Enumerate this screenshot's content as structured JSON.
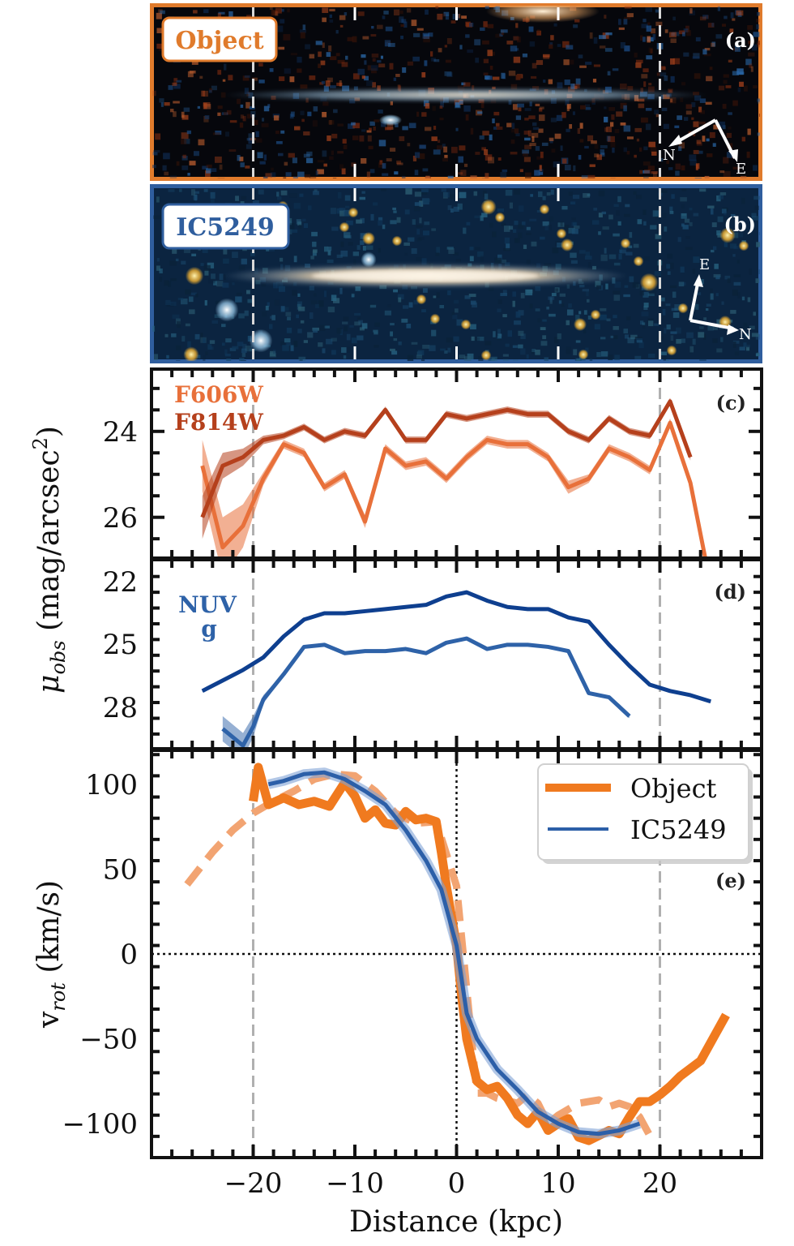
{
  "chart_data": [
    {
      "panel": "a",
      "type": "image",
      "label": "Object",
      "tag": "(a)",
      "frame_color": "#e07b2c",
      "compass": {
        "N": "N",
        "E": "E",
        "orientation": "N points lower-left, E points lower-right"
      },
      "vertical_markers_kpc": [
        -20,
        20
      ]
    },
    {
      "panel": "b",
      "type": "image",
      "label": "IC5249",
      "tag": "(b)",
      "frame_color": "#2f5e9e",
      "compass": {
        "N": "N",
        "E": "E",
        "orientation": "E points up, N points right"
      },
      "vertical_markers_kpc": [
        -20,
        20
      ]
    },
    {
      "panel": "c",
      "type": "line",
      "tag": "(c)",
      "xlim": [
        -30,
        30
      ],
      "ylim": [
        26.95,
        22.55
      ],
      "yticks": [
        24,
        26
      ],
      "y_inverted": true,
      "series": [
        {
          "name": "F606W",
          "color": "#e8703a",
          "x": [
            -25,
            -23,
            -21,
            -19,
            -17,
            -15,
            -13,
            -11,
            -9,
            -7,
            -5,
            -3,
            -1,
            1,
            3,
            5,
            7,
            9,
            11,
            13,
            15,
            17,
            19,
            21,
            23,
            24.5
          ],
          "y": [
            24.8,
            26.7,
            26.2,
            25.1,
            24.3,
            24.5,
            25.3,
            25.0,
            26.1,
            24.4,
            24.8,
            24.7,
            25.1,
            24.6,
            24.2,
            24.3,
            24.3,
            24.6,
            25.3,
            25.1,
            24.4,
            24.6,
            24.9,
            23.8,
            25.2,
            27.0
          ],
          "err": [
            0.6,
            0.7,
            0.5,
            0.15,
            0.1,
            0.1,
            0.1,
            0.1,
            0.15,
            0.1,
            0.1,
            0.1,
            0.1,
            0.1,
            0.1,
            0.1,
            0.1,
            0.1,
            0.15,
            0.1,
            0.1,
            0.1,
            0.1,
            0.1,
            0.1,
            0.1
          ]
        },
        {
          "name": "F814W",
          "color": "#b5401c",
          "x": [
            -25,
            -23,
            -21,
            -19,
            -17,
            -15,
            -13,
            -11,
            -9,
            -7,
            -5,
            -3,
            -1,
            1,
            3,
            5,
            7,
            9,
            11,
            13,
            15,
            17,
            19,
            21,
            23
          ],
          "y": [
            26.0,
            24.8,
            24.6,
            24.2,
            24.1,
            23.9,
            24.2,
            24.0,
            24.1,
            23.5,
            24.2,
            24.2,
            23.6,
            23.7,
            23.6,
            23.5,
            23.6,
            23.6,
            24.0,
            24.2,
            23.7,
            24.0,
            24.1,
            23.3,
            24.6
          ],
          "err": [
            0.5,
            0.3,
            0.2,
            0.1,
            0.08,
            0.08,
            0.08,
            0.08,
            0.08,
            0.08,
            0.08,
            0.08,
            0.08,
            0.08,
            0.08,
            0.08,
            0.08,
            0.08,
            0.08,
            0.08,
            0.08,
            0.08,
            0.08,
            0.08,
            0.08
          ]
        }
      ]
    },
    {
      "panel": "d",
      "type": "line",
      "tag": "(d)",
      "xlim": [
        -30,
        30
      ],
      "ylim": [
        29.95,
        20.95
      ],
      "yticks": [
        22,
        25,
        28
      ],
      "y_inverted": true,
      "series": [
        {
          "name": "NUV",
          "color": "#0e3f8f",
          "x": [
            -25,
            -23,
            -21,
            -19,
            -17,
            -15,
            -13,
            -11,
            -9,
            -7,
            -5,
            -3,
            -1,
            1,
            3,
            5,
            7,
            9,
            11,
            13,
            15,
            17,
            19,
            21,
            23,
            25
          ],
          "y": [
            27.2,
            26.7,
            26.2,
            25.6,
            24.6,
            23.8,
            23.5,
            23.5,
            23.4,
            23.3,
            23.2,
            23.1,
            22.7,
            22.5,
            22.9,
            23.2,
            23.3,
            23.3,
            23.7,
            23.9,
            25.0,
            26.0,
            26.9,
            27.2,
            27.4,
            27.7
          ],
          "err": [
            0.05,
            0.05,
            0.05,
            0.05,
            0.05,
            0.05,
            0.05,
            0.05,
            0.05,
            0.05,
            0.05,
            0.05,
            0.05,
            0.05,
            0.05,
            0.05,
            0.05,
            0.05,
            0.05,
            0.05,
            0.05,
            0.05,
            0.05,
            0.05,
            0.05,
            0.05
          ]
        },
        {
          "name": "g",
          "color": "#2e62a8",
          "x": [
            -23,
            -21,
            -20,
            -19,
            -17,
            -15,
            -13,
            -11,
            -9,
            -7,
            -5,
            -3,
            -1,
            1,
            3,
            5,
            7,
            9,
            11,
            13,
            15,
            17
          ],
          "y": [
            29.0,
            29.8,
            28.9,
            27.6,
            26.4,
            25.1,
            25.0,
            25.4,
            25.3,
            25.3,
            25.2,
            25.4,
            24.9,
            24.7,
            25.2,
            25.0,
            25.0,
            25.1,
            25.3,
            27.3,
            27.5,
            28.4
          ],
          "err": [
            0.6,
            0.6,
            0.5,
            0.2,
            0.08,
            0.05,
            0.05,
            0.05,
            0.05,
            0.05,
            0.05,
            0.05,
            0.05,
            0.05,
            0.05,
            0.05,
            0.05,
            0.05,
            0.05,
            0.08,
            0.08,
            0.1
          ]
        }
      ]
    },
    {
      "panel": "e",
      "type": "line",
      "tag": "(e)",
      "xlabel": "Distance (kpc)",
      "ylabel": "v_rot (km/s)",
      "xlim": [
        -30,
        30
      ],
      "ylim": [
        -120,
        120
      ],
      "xticks": [
        -20,
        -10,
        0,
        10,
        20
      ],
      "xtick_labels": [
        "−20",
        "−10",
        "0",
        "10",
        "20"
      ],
      "yticks": [
        100,
        50,
        0,
        -50,
        -100
      ],
      "ytick_labels": [
        "100",
        "50",
        "0",
        "−50",
        "−100"
      ],
      "reference_lines": {
        "horizontal_dotted": 0,
        "vertical_dotted": 0,
        "vertical_dashed_gray": [
          -20,
          20
        ]
      },
      "legend": {
        "position": "top-right",
        "entries": [
          "Object",
          "IC5249"
        ]
      },
      "series": [
        {
          "name": "Object",
          "color": "#f07a1f",
          "style": "solid-thick",
          "x": [
            -20,
            -19.5,
            -18.5,
            -17,
            -15.5,
            -14,
            -12.5,
            -11,
            -10,
            -9,
            -8,
            -7,
            -6,
            -5,
            -4,
            -3,
            -2,
            -1.5,
            -1,
            0,
            0.5,
            1,
            2,
            3,
            4,
            5,
            6,
            7,
            8,
            9,
            10,
            11,
            12,
            13,
            14,
            15,
            16,
            17,
            18,
            19,
            20,
            21,
            22,
            24,
            26.5
          ],
          "y": [
            90,
            110,
            88,
            92,
            88,
            90,
            87,
            101,
            93,
            80,
            85,
            77,
            76,
            84,
            79,
            80,
            78,
            60,
            40,
            5,
            -25,
            -50,
            -75,
            -80,
            -78,
            -85,
            -95,
            -100,
            -93,
            -104,
            -100,
            -97,
            -108,
            -110,
            -107,
            -104,
            -106,
            -96,
            -87,
            -87,
            -83,
            -78,
            -72,
            -63,
            -36
          ]
        },
        {
          "name": "Object (dashed)",
          "color": "#f2a472",
          "style": "dashed",
          "x": [
            -26.5,
            -24,
            -22,
            -20,
            -18,
            -16,
            -14,
            -12,
            -10,
            -8,
            -6,
            -4,
            -2,
            0,
            2,
            3,
            4,
            6,
            7,
            8,
            9,
            10,
            12,
            13,
            14,
            15,
            16,
            17,
            18,
            19
          ],
          "y": [
            41,
            60,
            73,
            83,
            90,
            96,
            103,
            106,
            105,
            96,
            83,
            77,
            78,
            40,
            -82,
            -82,
            -85,
            -88,
            -83,
            -88,
            -100,
            -95,
            -88,
            -87,
            -86,
            -90,
            -88,
            -90,
            -96,
            -107
          ]
        },
        {
          "name": "IC5249",
          "color": "#2c5fa8",
          "style": "solid",
          "x": [
            -18.5,
            -17,
            -15,
            -13,
            -11,
            -9,
            -7,
            -5,
            -3,
            -1.5,
            0,
            1,
            2,
            4,
            6,
            8,
            10,
            12,
            14,
            16,
            18
          ],
          "y": [
            100,
            102,
            106,
            107,
            103,
            96,
            88,
            73,
            55,
            38,
            5,
            -35,
            -50,
            -68,
            -80,
            -93,
            -100,
            -105,
            -106,
            -104,
            -100
          ]
        }
      ]
    }
  ],
  "labels": {
    "panel_a_label": "Object",
    "panel_b_label": "IC5249",
    "tag_a": "(a)",
    "tag_b": "(b)",
    "tag_c": "(c)",
    "tag_d": "(d)",
    "tag_e": "(e)",
    "band_f606w": "F606W",
    "band_f814w": "F814W",
    "band_nuv": "NUV",
    "band_g": "g",
    "ylabel_mu": "μ",
    "ylabel_mu_sub": "obs",
    "ylabel_mu_unit": " (mag/arcsec",
    "ylabel_mu_sup": "2",
    "ylabel_mu_close": ")",
    "ylabel_v": "v",
    "ylabel_v_sub": "rot",
    "ylabel_v_unit": " (km/s)",
    "xlabel": "Distance (kpc)",
    "legend_object": "Object",
    "legend_ic5249": "IC5249",
    "compass_n": "N",
    "compass_e": "E",
    "ytick_c": [
      "24",
      "26"
    ],
    "ytick_d": [
      "22",
      "25",
      "28"
    ]
  }
}
